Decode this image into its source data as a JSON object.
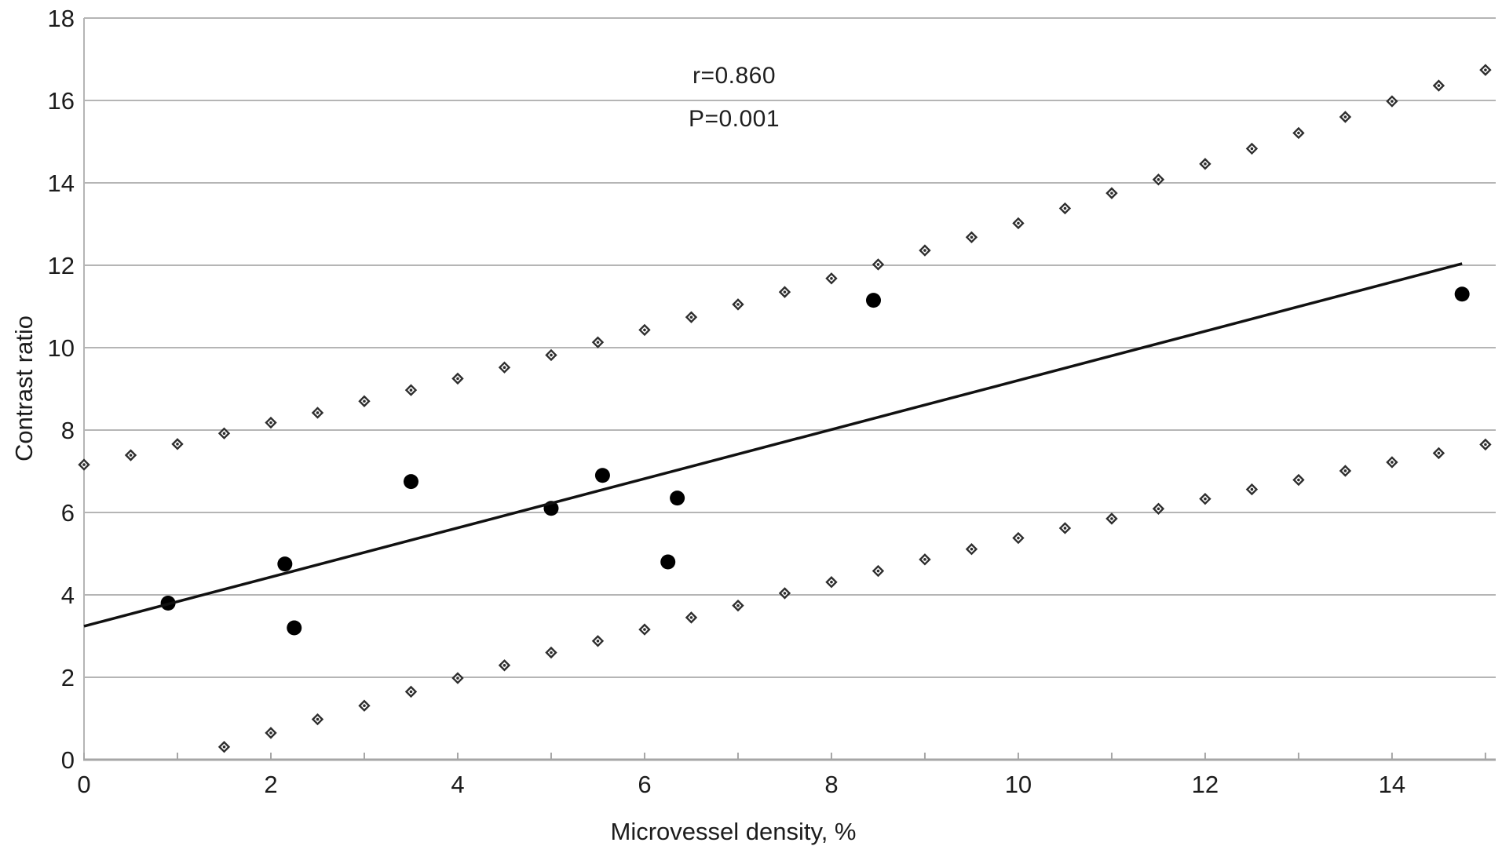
{
  "chart_data": {
    "type": "scatter",
    "title": "",
    "xlabel": "Microvessel density, %",
    "ylabel": "Contrast ratio",
    "xlim": [
      0,
      15.11
    ],
    "ylim": [
      0,
      18
    ],
    "x_tick_labels": [
      0,
      2,
      4,
      6,
      8,
      10,
      12,
      14
    ],
    "x_minor_tick_step": 1,
    "y_ticks": [
      0,
      2,
      4,
      6,
      8,
      10,
      12,
      14,
      16,
      18
    ],
    "grid": "horizontal",
    "legend": "none",
    "annotation_r": "r=0.860",
    "annotation_p": "P=0.001",
    "colors": {
      "point": "#000000",
      "line": "#111111",
      "gridline": "#b5b5b5",
      "axis": "#a6a6a6",
      "diamond_stroke": "#2e2e2e",
      "text": "#1c1c1c"
    },
    "series": [
      {
        "name": "observations",
        "marker": "filled-circle",
        "points": [
          [
            0.9,
            3.8
          ],
          [
            2.15,
            4.75
          ],
          [
            2.25,
            3.2
          ],
          [
            3.5,
            6.75
          ],
          [
            5.0,
            6.1
          ],
          [
            5.55,
            6.9
          ],
          [
            6.35,
            6.35
          ],
          [
            6.25,
            4.8
          ],
          [
            8.45,
            11.15
          ],
          [
            14.75,
            11.3
          ]
        ]
      },
      {
        "name": "regression-line",
        "marker": "line",
        "points": [
          [
            0,
            3.24
          ],
          [
            14.75,
            12.04
          ]
        ]
      },
      {
        "name": "upper-confidence-band",
        "marker": "open-diamond",
        "points": [
          [
            0,
            7.16
          ],
          [
            0.5,
            7.39
          ],
          [
            1,
            7.66
          ],
          [
            1.5,
            7.92
          ],
          [
            2,
            8.18
          ],
          [
            2.5,
            8.42
          ],
          [
            3,
            8.7
          ],
          [
            3.5,
            8.97
          ],
          [
            4,
            9.25
          ],
          [
            4.5,
            9.52
          ],
          [
            5,
            9.82
          ],
          [
            5.5,
            10.13
          ],
          [
            6,
            10.43
          ],
          [
            6.5,
            10.74
          ],
          [
            7,
            11.05
          ],
          [
            7.5,
            11.35
          ],
          [
            8,
            11.68
          ],
          [
            8.5,
            12.02
          ],
          [
            9,
            12.36
          ],
          [
            9.5,
            12.68
          ],
          [
            10,
            13.02
          ],
          [
            10.5,
            13.38
          ],
          [
            11,
            13.75
          ],
          [
            11.5,
            14.08
          ],
          [
            12,
            14.46
          ],
          [
            12.5,
            14.83
          ],
          [
            13,
            15.21
          ],
          [
            13.5,
            15.6
          ],
          [
            14,
            15.98
          ],
          [
            14.5,
            16.36
          ],
          [
            15,
            16.74
          ]
        ]
      },
      {
        "name": "lower-confidence-band",
        "marker": "open-diamond",
        "points": [
          [
            1.5,
            0.31
          ],
          [
            2,
            0.65
          ],
          [
            2.5,
            0.98
          ],
          [
            3,
            1.31
          ],
          [
            3.5,
            1.65
          ],
          [
            4,
            1.98
          ],
          [
            4.5,
            2.29
          ],
          [
            5,
            2.6
          ],
          [
            5.5,
            2.88
          ],
          [
            6,
            3.16
          ],
          [
            6.5,
            3.45
          ],
          [
            7,
            3.74
          ],
          [
            7.5,
            4.04
          ],
          [
            8,
            4.31
          ],
          [
            8.5,
            4.58
          ],
          [
            9,
            4.86
          ],
          [
            9.5,
            5.11
          ],
          [
            10,
            5.38
          ],
          [
            10.5,
            5.62
          ],
          [
            11,
            5.85
          ],
          [
            11.5,
            6.09
          ],
          [
            12,
            6.33
          ],
          [
            12.5,
            6.56
          ],
          [
            13,
            6.79
          ],
          [
            13.5,
            7.01
          ],
          [
            14,
            7.22
          ],
          [
            14.5,
            7.44
          ],
          [
            15,
            7.65
          ]
        ]
      }
    ]
  }
}
